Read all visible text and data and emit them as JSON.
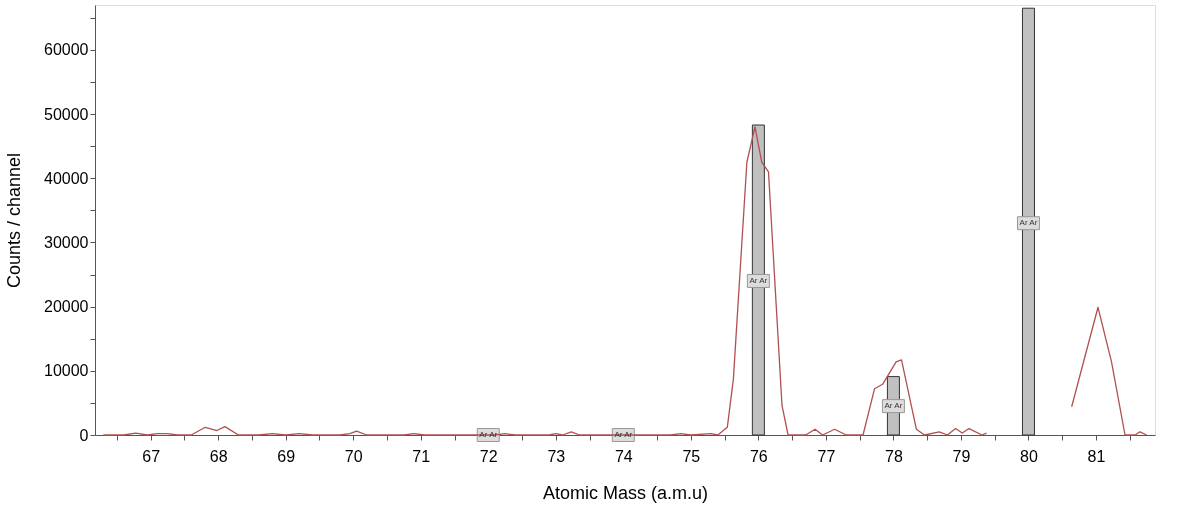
{
  "chart_data": {
    "type": "line",
    "xlabel": "Atomic Mass (a.m.u)",
    "ylabel": "Counts / channel",
    "xlim": [
      66.25,
      81.8
    ],
    "ylim": [
      0,
      67000
    ],
    "xticks": [
      {
        "value": 66.5,
        "label": null
      },
      67,
      {
        "value": 67.5,
        "label": null
      },
      68,
      {
        "value": 68.5,
        "label": null
      },
      69,
      {
        "value": 69.5,
        "label": null
      },
      70,
      {
        "value": 70.5,
        "label": null
      },
      71,
      {
        "value": 71.5,
        "label": null
      },
      72,
      {
        "value": 72.5,
        "label": null
      },
      73,
      {
        "value": 73.5,
        "label": null
      },
      74,
      {
        "value": 74.5,
        "label": null
      },
      75,
      {
        "value": 75.5,
        "label": null
      },
      76,
      {
        "value": 76.5,
        "label": null
      },
      77,
      {
        "value": 77.5,
        "label": null
      },
      78,
      {
        "value": 78.5,
        "label": null
      },
      79,
      {
        "value": 79.5,
        "label": null
      },
      80,
      {
        "value": 80.5,
        "label": null
      },
      81,
      {
        "value": 81.5,
        "label": null
      }
    ],
    "yticks": [
      0,
      {
        "value": 5000,
        "label": null
      },
      10000,
      {
        "value": 15000,
        "label": null
      },
      20000,
      {
        "value": 25000,
        "label": null
      },
      30000,
      {
        "value": 35000,
        "label": null
      },
      40000,
      {
        "value": 45000,
        "label": null
      },
      50000,
      {
        "value": 55000,
        "label": null
      },
      60000,
      {
        "value": 65000,
        "label": null
      }
    ],
    "grid": false,
    "marker": "none",
    "line_style": "solid",
    "series": [
      {
        "type": "bar",
        "color": "#c0c0c0",
        "x": [
          76,
          78,
          80
        ],
        "values": [
          48300,
          9100,
          66500
        ]
      },
      {
        "color": "#b05050",
        "x": [
          66.3,
          66.6,
          66.78,
          66.95,
          67.1,
          67.25,
          67.4,
          67.6,
          67.81,
          67.98,
          68.1,
          68.3,
          68.6,
          68.8,
          69.0,
          69.2,
          69.4,
          69.8,
          69.95,
          70.05,
          70.2,
          70.75,
          70.9,
          71.05,
          72.1,
          72.25,
          72.4,
          72.9,
          73.0,
          73.1,
          73.23,
          73.35,
          74.2,
          74.7,
          74.85,
          75.0,
          75.3,
          75.4,
          75.54,
          75.63,
          75.83,
          75.95,
          76.05,
          76.15,
          76.35,
          76.44,
          76.7,
          76.84,
          76.95,
          77.13,
          77.3,
          77.55,
          77.72,
          77.84,
          78.04,
          78.12,
          78.34,
          78.46,
          78.68,
          78.8,
          78.92,
          79.02,
          79.12,
          79.31,
          79.38,
          79.5,
          80.64,
          81.03,
          81.23,
          81.43,
          81.58,
          81.65,
          81.75
        ],
        "values": [
          0,
          0,
          300,
          0,
          200,
          200,
          0,
          0,
          1200,
          700,
          1300,
          0,
          0,
          200,
          0,
          200,
          0,
          0,
          200,
          600,
          0,
          0,
          200,
          0,
          0,
          200,
          0,
          0,
          200,
          0,
          500,
          0,
          0,
          0,
          200,
          0,
          200,
          0,
          1200,
          8700,
          42500,
          48000,
          42500,
          41000,
          4600,
          0,
          0,
          900,
          0,
          900,
          0,
          0,
          7200,
          7900,
          11400,
          11700,
          900,
          0,
          500,
          0,
          1000,
          300,
          1000,
          0,
          300,
          null,
          4400,
          19900,
          11400,
          0,
          0,
          500,
          0
        ]
      }
    ],
    "annotations": [
      {
        "text": "Ar Ar",
        "x": 72,
        "y": 0
      },
      {
        "text": "Ar Ar",
        "x": 74,
        "y": 0
      },
      {
        "text": "Ar Ar",
        "x": 76,
        "y": 24000
      },
      {
        "text": "Ar Ar",
        "x": 78,
        "y": 4500
      },
      {
        "text": "Ar Ar",
        "x": 80,
        "y": 33000
      }
    ]
  }
}
